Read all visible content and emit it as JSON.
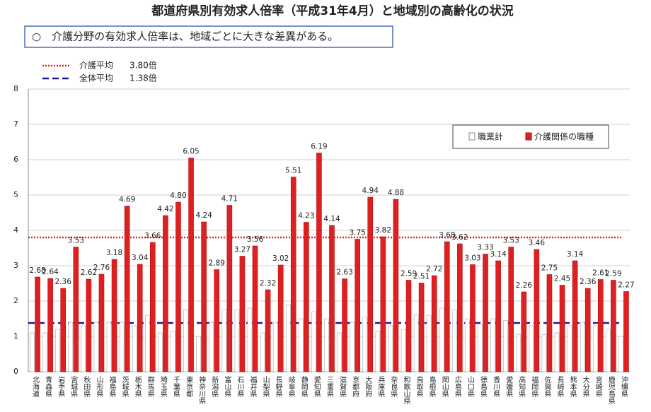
{
  "chart_data": {
    "type": "bar",
    "title": "都道府県別有効求人倍率（平成31年4月）と地域別の高齢化の状況",
    "subtitle": "○　介護分野の有効求人倍率は、地域ごとに大きな差異がある。",
    "categories": [
      "北海道",
      "青森県",
      "岩手県",
      "宮城県",
      "秋田県",
      "山形県",
      "福島県",
      "茨城県",
      "栃木県",
      "群馬県",
      "埼玉県",
      "千葉県",
      "東京都",
      "神奈川県",
      "新潟県",
      "富山県",
      "石川県",
      "福井県",
      "山梨県",
      "長野県",
      "岐阜県",
      "静岡県",
      "愛知県",
      "三重県",
      "滋賀県",
      "京都府",
      "大阪府",
      "兵庫県",
      "奈良県",
      "和歌山県",
      "鳥取県",
      "島根県",
      "岡山県",
      "広島県",
      "山口県",
      "徳島県",
      "香川県",
      "愛媛県",
      "高知県",
      "福岡県",
      "佐賀県",
      "長崎県",
      "熊本県",
      "大分県",
      "宮崎県",
      "鹿児島県",
      "沖縄県"
    ],
    "series": [
      {
        "name": "職業計",
        "color": "#ffffff",
        "values": [
          1.1,
          1.1,
          1.2,
          1.4,
          1.3,
          1.4,
          1.4,
          1.4,
          1.3,
          1.6,
          1.1,
          1.15,
          1.75,
          1.0,
          1.4,
          1.75,
          1.75,
          1.8,
          1.1,
          1.4,
          1.9,
          1.5,
          1.7,
          1.5,
          1.1,
          1.4,
          1.55,
          1.15,
          1.3,
          1.2,
          1.6,
          1.6,
          1.8,
          1.75,
          1.5,
          1.35,
          1.5,
          1.45,
          1.05,
          1.3,
          1.05,
          1.1,
          1.3,
          1.4,
          1.3,
          1.2,
          1.0
        ]
      },
      {
        "name": "介護関係の職種",
        "color": "#e02020",
        "values": [
          2.68,
          2.64,
          2.36,
          3.53,
          2.62,
          2.76,
          3.18,
          4.69,
          3.04,
          3.66,
          4.42,
          4.8,
          6.05,
          4.24,
          2.89,
          4.71,
          3.27,
          3.56,
          2.32,
          3.02,
          5.51,
          4.23,
          6.19,
          4.14,
          2.63,
          3.75,
          4.94,
          3.82,
          4.88,
          2.59,
          2.51,
          2.72,
          3.68,
          3.62,
          3.03,
          3.33,
          3.14,
          3.53,
          2.26,
          3.46,
          2.75,
          2.45,
          3.14,
          2.36,
          2.61,
          2.59,
          2.27
        ],
        "value_labels": [
          "2.68",
          "2.64",
          "2.36",
          "3.53",
          "2.62",
          "2.76",
          "3.18",
          "4.69",
          "3.04",
          "3.66",
          "4.42",
          "4.80",
          "6.05",
          "4.24",
          "2.89",
          "4.71",
          "3.27",
          "3.56",
          "2.32",
          "3.02",
          "5.51",
          "4.23",
          "6.19",
          "4.14",
          "2.63",
          "3.75",
          "4.94",
          "3.82",
          "4.88",
          "2.59",
          "2.51",
          "2.72",
          "3.68",
          "3.62",
          "3.03",
          "3.33",
          "3.14",
          "3.53",
          "2.26",
          "3.46",
          "2.75",
          "2.45",
          "3.14",
          "2.36",
          "2.61",
          "2.59",
          "2.27"
        ]
      }
    ],
    "reference_lines": [
      {
        "name": "介護平均",
        "value": 3.8,
        "value_label": "3.80倍",
        "color": "#e02020",
        "style": "dotted"
      },
      {
        "name": "全体平均",
        "value": 1.38,
        "value_label": "1.38倍",
        "color": "#1a1aa0",
        "style": "dashed"
      }
    ],
    "ylim": [
      0,
      8
    ],
    "yticks": [
      0,
      1,
      2,
      3,
      4,
      5,
      6,
      7,
      8
    ],
    "grid": true,
    "legend": "upper right"
  }
}
